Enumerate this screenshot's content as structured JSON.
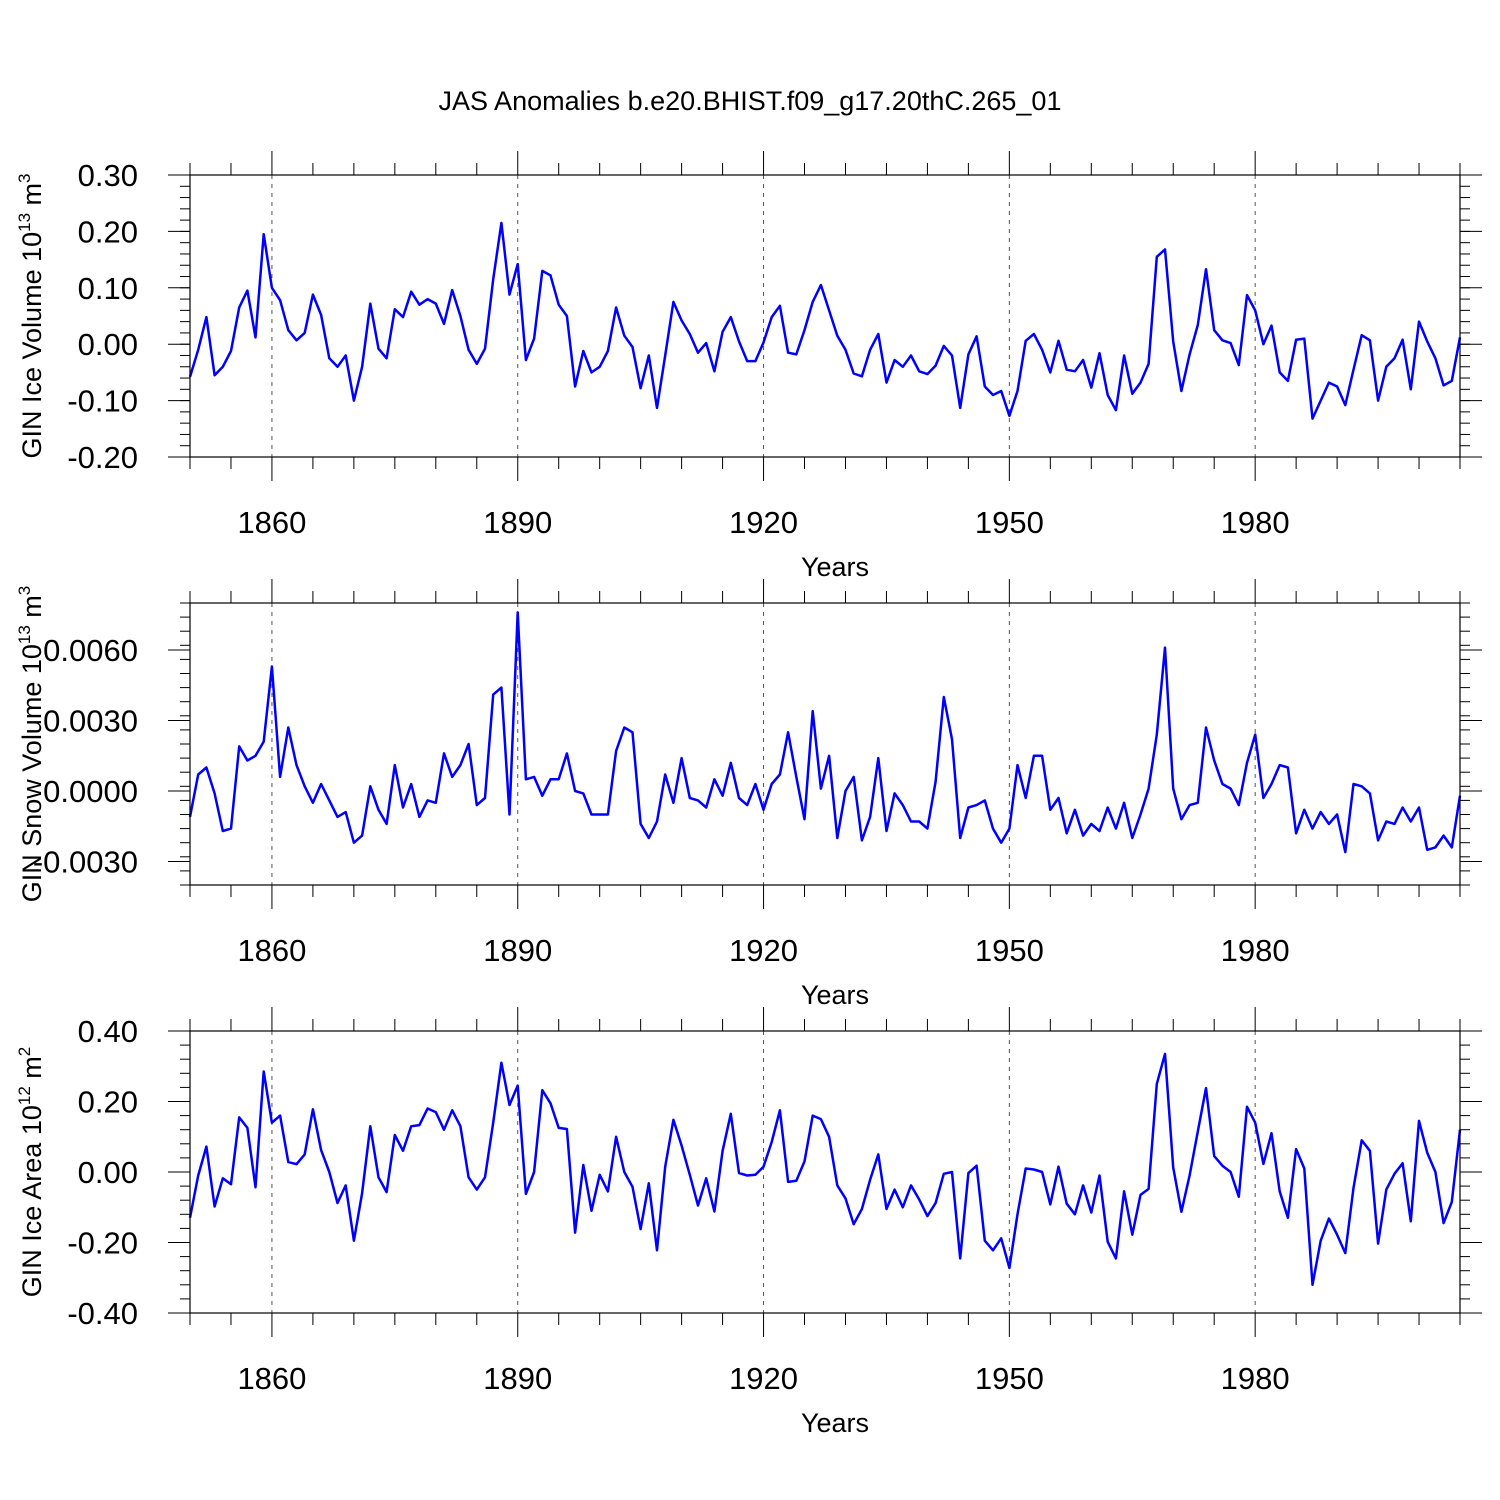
{
  "title": "JAS Anomalies b.e20.BHIST.f09_g17.20thC.265_01",
  "line_color": "#0000ff",
  "chart_data": [
    {
      "type": "line",
      "title": "JAS Anomalies b.e20.BHIST.f09_g17.20thC.265_01",
      "xlabel": "Years",
      "ylabel": "GIN Ice Volume 10",
      "ylabel_exp": "13",
      "ylabel_unit": " m",
      "ylabel_unit_exp": "3",
      "xlim": [
        1850,
        2005
      ],
      "ylim": [
        -0.2,
        0.3
      ],
      "xticks": [
        1860,
        1890,
        1920,
        1950,
        1980
      ],
      "yticks": [
        -0.2,
        -0.1,
        0.0,
        0.1,
        0.2,
        0.3
      ],
      "ytick_labels": [
        "-0.20",
        "-0.10",
        "0.00",
        "0.10",
        "0.20",
        "0.30"
      ],
      "grid": "vertical dashed at major x ticks",
      "x_start": 1850,
      "values": [
        -0.058,
        -0.01,
        0.048,
        -0.055,
        -0.04,
        -0.012,
        0.065,
        0.095,
        0.012,
        0.195,
        0.1,
        0.078,
        0.025,
        0.007,
        0.02,
        0.088,
        0.052,
        -0.025,
        -0.04,
        -0.02,
        -0.1,
        -0.04,
        0.072,
        -0.008,
        -0.025,
        0.062,
        0.048,
        0.093,
        0.07,
        0.08,
        0.072,
        0.036,
        0.096,
        0.05,
        -0.01,
        -0.035,
        -0.008,
        0.115,
        0.215,
        0.088,
        0.142,
        -0.028,
        0.01,
        0.13,
        0.122,
        0.07,
        0.05,
        -0.075,
        -0.012,
        -0.05,
        -0.04,
        -0.012,
        0.065,
        0.015,
        -0.005,
        -0.078,
        -0.02,
        -0.113,
        -0.02,
        0.075,
        0.042,
        0.018,
        -0.015,
        0.002,
        -0.048,
        0.022,
        0.048,
        0.005,
        -0.03,
        -0.03,
        0.003,
        0.048,
        0.068,
        -0.015,
        -0.018,
        0.025,
        0.075,
        0.105,
        0.06,
        0.015,
        -0.01,
        -0.052,
        -0.057,
        -0.01,
        0.018,
        -0.068,
        -0.028,
        -0.04,
        -0.02,
        -0.048,
        -0.053,
        -0.038,
        -0.003,
        -0.02,
        -0.113,
        -0.018,
        0.014,
        -0.075,
        -0.09,
        -0.083,
        -0.127,
        -0.083,
        0.006,
        0.018,
        -0.01,
        -0.05,
        0.006,
        -0.045,
        -0.048,
        -0.028,
        -0.077,
        -0.016,
        -0.09,
        -0.117,
        -0.02,
        -0.088,
        -0.068,
        -0.035,
        0.155,
        0.168,
        0.005,
        -0.083,
        -0.018,
        0.034,
        0.133,
        0.025,
        0.007,
        0.002,
        -0.037,
        0.087,
        0.06,
        0.0,
        0.033,
        -0.05,
        -0.065,
        0.008,
        0.01,
        -0.132,
        -0.1,
        -0.068,
        -0.075,
        -0.108,
        -0.045,
        0.016,
        0.007,
        -0.1,
        -0.04,
        -0.025,
        0.008,
        -0.08,
        0.04,
        0.005,
        -0.025,
        -0.073,
        -0.065,
        0.012
      ]
    },
    {
      "type": "line",
      "xlabel": "Years",
      "ylabel": "GIN Snow Volume 10",
      "ylabel_exp": "13",
      "ylabel_unit": " m",
      "ylabel_unit_exp": "3",
      "xlim": [
        1850,
        2005
      ],
      "ylim": [
        -0.004,
        0.008
      ],
      "xticks": [
        1860,
        1890,
        1920,
        1950,
        1980
      ],
      "yticks": [
        -0.003,
        0.0,
        0.003,
        0.006
      ],
      "ytick_labels": [
        "-0.0030",
        "0.0000",
        "0.0030",
        "0.0060"
      ],
      "grid": "vertical dashed at major x ticks",
      "x_start": 1850,
      "values": [
        -0.0011,
        0.0007,
        0.001,
        -0.0001,
        -0.0017,
        -0.0016,
        0.0019,
        0.0013,
        0.0015,
        0.0021,
        0.0053,
        0.0006,
        0.0027,
        0.0011,
        0.0002,
        -0.0005,
        0.0003,
        -0.0004,
        -0.0011,
        -0.0009,
        -0.0022,
        -0.0019,
        0.0002,
        -0.0008,
        -0.0014,
        0.0011,
        -0.0007,
        0.0003,
        -0.0011,
        -0.0004,
        -0.0005,
        0.0016,
        0.0006,
        0.0011,
        0.002,
        -0.0006,
        -0.0003,
        0.0041,
        0.0044,
        -0.001,
        0.0076,
        0.0005,
        0.0006,
        -0.0002,
        0.0005,
        0.0005,
        0.0016,
        0.0,
        -0.0001,
        -0.001,
        -0.001,
        -0.001,
        0.0017,
        0.0027,
        0.0025,
        -0.0014,
        -0.002,
        -0.0013,
        0.0007,
        -0.0005,
        0.0014,
        -0.0003,
        -0.0004,
        -0.0007,
        0.0005,
        -0.0002,
        0.0012,
        -0.0003,
        -0.0006,
        0.0003,
        -0.0008,
        0.0003,
        0.0007,
        0.0025,
        0.0006,
        -0.0012,
        0.0034,
        0.0001,
        0.0015,
        -0.002,
        0.0,
        0.0006,
        -0.0021,
        -0.0011,
        0.0014,
        -0.0017,
        -0.0001,
        -0.0006,
        -0.0013,
        -0.0013,
        -0.0016,
        0.0004,
        0.004,
        0.0022,
        -0.002,
        -0.0007,
        -0.0006,
        -0.0004,
        -0.0016,
        -0.0022,
        -0.0016,
        0.0011,
        -0.0003,
        0.0015,
        0.0015,
        -0.0008,
        -0.0003,
        -0.0018,
        -0.0008,
        -0.0019,
        -0.0014,
        -0.0017,
        -0.0007,
        -0.0016,
        -0.0005,
        -0.002,
        -0.001,
        0.0001,
        0.0024,
        0.0061,
        0.0001,
        -0.0012,
        -0.0006,
        -0.0005,
        0.0027,
        0.0013,
        0.0003,
        0.0001,
        -0.0006,
        0.0012,
        0.0024,
        -0.0003,
        0.0003,
        0.0011,
        0.001,
        -0.0018,
        -0.0008,
        -0.0016,
        -0.0009,
        -0.0014,
        -0.001,
        -0.0026,
        0.0003,
        0.0002,
        -0.0001,
        -0.0021,
        -0.0013,
        -0.0014,
        -0.0007,
        -0.0013,
        -0.0007,
        -0.0025,
        -0.0024,
        -0.0019,
        -0.0024,
        -0.0002
      ]
    },
    {
      "type": "line",
      "xlabel": "Years",
      "ylabel": "GIN Ice Area 10",
      "ylabel_exp": "12",
      "ylabel_unit": " m",
      "ylabel_unit_exp": "2",
      "xlim": [
        1850,
        2005
      ],
      "ylim": [
        -0.4,
        0.4
      ],
      "xticks": [
        1860,
        1890,
        1920,
        1950,
        1980
      ],
      "yticks": [
        -0.4,
        -0.2,
        0.0,
        0.2,
        0.4
      ],
      "ytick_labels": [
        "-0.40",
        "-0.20",
        "0.00",
        "0.20",
        "0.40"
      ],
      "grid": "vertical dashed at major x ticks",
      "x_start": 1850,
      "values": [
        -0.13,
        -0.01,
        0.072,
        -0.098,
        -0.018,
        -0.035,
        0.155,
        0.125,
        -0.043,
        0.285,
        0.14,
        0.16,
        0.028,
        0.022,
        0.05,
        0.178,
        0.062,
        0.0,
        -0.088,
        -0.038,
        -0.195,
        -0.06,
        0.13,
        -0.015,
        -0.057,
        0.105,
        0.06,
        0.13,
        0.133,
        0.18,
        0.17,
        0.12,
        0.175,
        0.13,
        -0.015,
        -0.05,
        -0.015,
        0.14,
        0.31,
        0.19,
        0.245,
        -0.062,
        0.0,
        0.232,
        0.195,
        0.125,
        0.122,
        -0.172,
        0.02,
        -0.11,
        -0.008,
        -0.055,
        0.1,
        0.0,
        -0.042,
        -0.162,
        -0.032,
        -0.222,
        0.015,
        0.148,
        0.075,
        -0.008,
        -0.095,
        -0.018,
        -0.112,
        0.06,
        0.165,
        -0.003,
        -0.01,
        -0.008,
        0.015,
        0.085,
        0.175,
        -0.028,
        -0.025,
        0.03,
        0.16,
        0.15,
        0.1,
        -0.038,
        -0.075,
        -0.148,
        -0.105,
        -0.022,
        0.05,
        -0.105,
        -0.05,
        -0.1,
        -0.038,
        -0.078,
        -0.125,
        -0.088,
        -0.005,
        0.0,
        -0.245,
        -0.003,
        0.018,
        -0.195,
        -0.222,
        -0.188,
        -0.272,
        -0.12,
        0.01,
        0.007,
        0.0,
        -0.092,
        0.015,
        -0.09,
        -0.12,
        -0.038,
        -0.115,
        -0.01,
        -0.198,
        -0.245,
        -0.055,
        -0.178,
        -0.065,
        -0.048,
        0.25,
        0.335,
        0.013,
        -0.113,
        -0.01,
        0.115,
        0.238,
        0.045,
        0.018,
        0.0,
        -0.07,
        0.185,
        0.14,
        0.023,
        0.11,
        -0.055,
        -0.13,
        0.065,
        0.01,
        -0.32,
        -0.195,
        -0.132,
        -0.178,
        -0.23,
        -0.045,
        0.09,
        0.06,
        -0.203,
        -0.05,
        -0.005,
        0.025,
        -0.14,
        0.145,
        0.055,
        0.0,
        -0.145,
        -0.085,
        0.12
      ]
    }
  ]
}
